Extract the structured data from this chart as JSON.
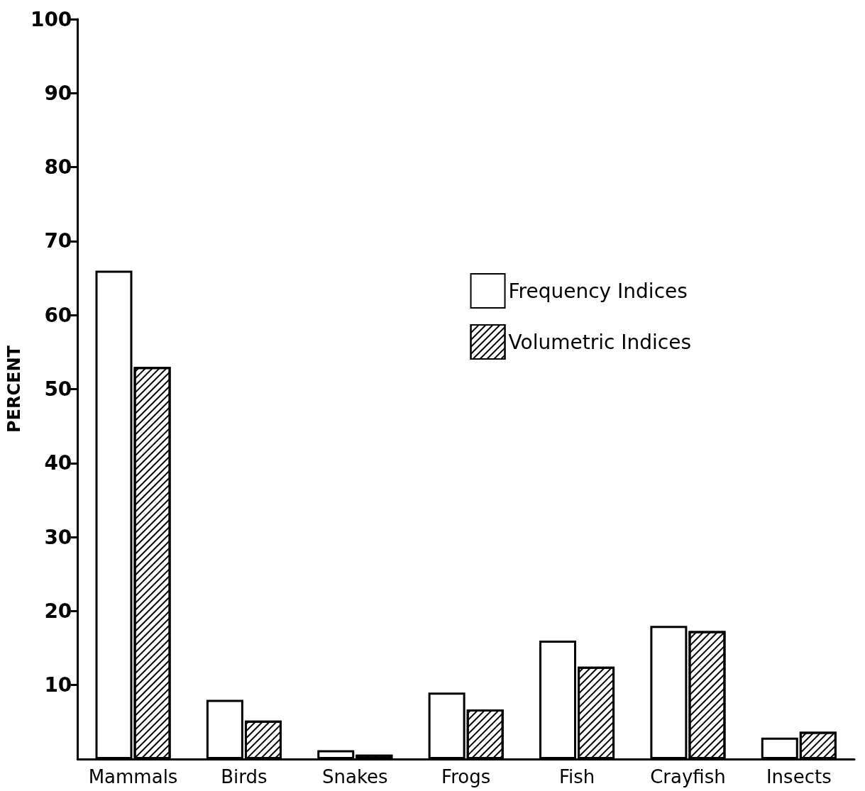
{
  "chart_data": {
    "type": "bar",
    "ylabel": "PERCENT",
    "categories": [
      "Mammals",
      "Birds",
      "Snakes",
      "Frogs",
      "Fish",
      "Crayfish",
      "Insects"
    ],
    "series": [
      {
        "name": "Frequency Indices",
        "color": "#ffffff",
        "values": [
          66,
          8,
          1.2,
          9,
          16,
          18,
          2.9
        ]
      },
      {
        "name": "Volumetric Indices",
        "color": "#ffffff",
        "values": [
          53,
          5.2,
          0.6,
          6.7,
          12.5,
          17.3,
          3.7
        ]
      }
    ],
    "ylim": [
      0,
      100
    ],
    "yticks": [
      10,
      20,
      30,
      40,
      50,
      60,
      70,
      80,
      90,
      100
    ],
    "grid": false,
    "legend": "top right"
  }
}
